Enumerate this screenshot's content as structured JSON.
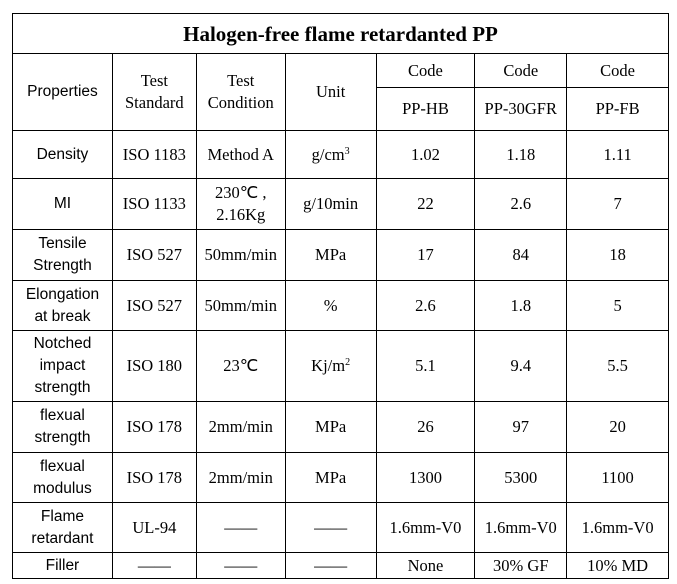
{
  "title": "Halogen-free flame retardanted PP",
  "headers": {
    "properties": "Properties",
    "test_standard": "Test\nStandard",
    "test_condition": "Test\nCondition",
    "unit": "Unit",
    "code_label": "Code",
    "codes": [
      "PP-HB",
      "PP-30GFR",
      "PP-FB"
    ]
  },
  "rows": [
    {
      "property": "Density",
      "standard": "ISO 1183",
      "condition": "Method A",
      "unit": "g/cm",
      "unit_sup": "3",
      "values": [
        "1.02",
        "1.18",
        "1.11"
      ]
    },
    {
      "property": "MI",
      "standard": "ISO 1133",
      "condition": "230℃ ,\n2.16Kg",
      "unit": "g/10min",
      "unit_sup": "",
      "values": [
        "22",
        "2.6",
        "7"
      ]
    },
    {
      "property": "Tensile\nStrength",
      "standard": "ISO 527",
      "condition": "50mm/min",
      "unit": "MPa",
      "unit_sup": "",
      "values": [
        "17",
        "84",
        "18"
      ]
    },
    {
      "property": "Elongation\nat break",
      "standard": "ISO 527",
      "condition": "50mm/min",
      "unit": "%",
      "unit_sup": "",
      "values": [
        "2.6",
        "1.8",
        "5"
      ]
    },
    {
      "property": "Notched\nimpact\nstrength",
      "standard": "ISO 180",
      "condition": "23℃",
      "unit": "Kj/m",
      "unit_sup": "2",
      "values": [
        "5.1",
        "9.4",
        "5.5"
      ]
    },
    {
      "property": "flexual\nstrength",
      "standard": "ISO 178",
      "condition": "2mm/min",
      "unit": "MPa",
      "unit_sup": "",
      "values": [
        "26",
        "97",
        "20"
      ]
    },
    {
      "property": "flexual\nmodulus",
      "standard": "ISO 178",
      "condition": "2mm/min",
      "unit": "MPa",
      "unit_sup": "",
      "values": [
        "1300",
        "5300",
        "1100"
      ]
    },
    {
      "property": "Flame\nretardant",
      "standard": "UL-94",
      "condition": "——",
      "unit": "——",
      "unit_sup": "",
      "values": [
        "1.6mm-V0",
        "1.6mm-V0",
        "1.6mm-V0"
      ]
    },
    {
      "property": "Filler",
      "standard": "——",
      "condition": "——",
      "unit": "——",
      "unit_sup": "",
      "values": [
        "None",
        "30% GF",
        "10% MD"
      ]
    }
  ]
}
